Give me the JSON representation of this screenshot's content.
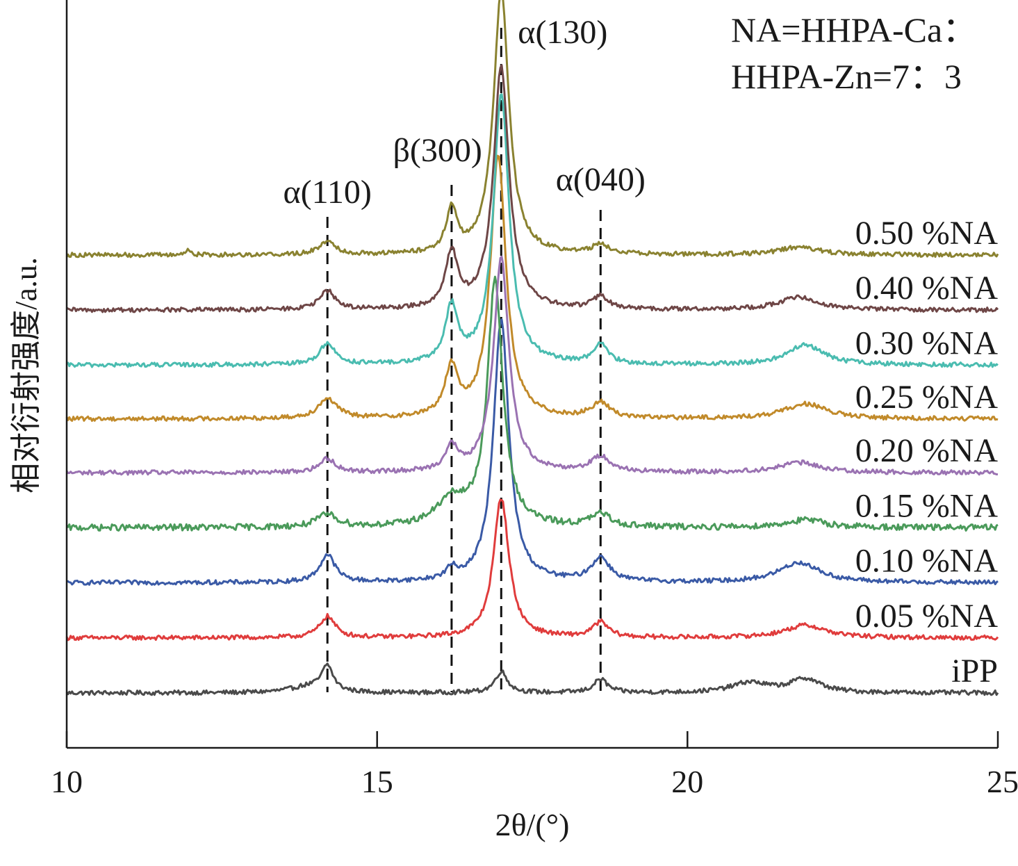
{
  "chart_data": {
    "type": "line",
    "xlabel": "2θ/(°)",
    "ylabel": "相对衍射强度/a.u.",
    "xlim": [
      10,
      25
    ],
    "x_ticks": [
      10,
      15,
      20,
      25
    ],
    "y_ticks_shown": false,
    "grid": false,
    "stacked_offset": true,
    "legend_placement": "inline-labels-right",
    "annotation_box": {
      "line1": "NA=HHPA-Ca：",
      "line2": "HHPA-Zn=7：3"
    },
    "reference_lines": [
      {
        "label": "α(110)",
        "x": 14.2
      },
      {
        "label": "β(300)",
        "x": 16.2
      },
      {
        "label": "α(130)",
        "x": 17.0
      },
      {
        "label": "α(040)",
        "x": 18.6
      }
    ],
    "series": [
      {
        "name": "iPP",
        "color": "#4a4a4a",
        "baseline": 0.0,
        "noise": 0.35,
        "peaks": [
          {
            "x": 13.9,
            "h": 0.5,
            "w": 0.35
          },
          {
            "x": 14.2,
            "h": 2.0,
            "w": 0.11
          },
          {
            "x": 17.0,
            "h": 1.7,
            "w": 0.12
          },
          {
            "x": 18.6,
            "h": 1.1,
            "w": 0.13
          },
          {
            "x": 21.0,
            "h": 0.8,
            "w": 0.35
          },
          {
            "x": 21.9,
            "h": 1.1,
            "w": 0.3
          }
        ]
      },
      {
        "name": "0.05 %NA",
        "color": "#e03c3c",
        "baseline": 4.4,
        "noise": 0.35,
        "peaks": [
          {
            "x": 14.2,
            "h": 1.7,
            "w": 0.15
          },
          {
            "x": 17.0,
            "h": 11.2,
            "w": 0.15
          },
          {
            "x": 18.6,
            "h": 1.2,
            "w": 0.15
          },
          {
            "x": 21.9,
            "h": 1.0,
            "w": 0.4
          }
        ]
      },
      {
        "name": "0.10 %NA",
        "color": "#3a5aa6",
        "baseline": 8.8,
        "noise": 0.35,
        "peaks": [
          {
            "x": 14.2,
            "h": 2.2,
            "w": 0.15
          },
          {
            "x": 16.2,
            "h": 0.8,
            "w": 0.1
          },
          {
            "x": 17.0,
            "h": 21.0,
            "w": 0.15
          },
          {
            "x": 18.6,
            "h": 1.9,
            "w": 0.18
          },
          {
            "x": 21.8,
            "h": 1.6,
            "w": 0.4
          }
        ]
      },
      {
        "name": "0.15 %NA",
        "color": "#4a9a5a",
        "baseline": 13.2,
        "noise": 0.5,
        "peaks": [
          {
            "x": 14.2,
            "h": 1.0,
            "w": 0.2
          },
          {
            "x": 16.2,
            "h": 2.0,
            "w": 0.3
          },
          {
            "x": 16.9,
            "h": 19.5,
            "w": 0.15
          },
          {
            "x": 18.6,
            "h": 1.0,
            "w": 0.2
          },
          {
            "x": 21.9,
            "h": 0.6,
            "w": 0.4
          }
        ]
      },
      {
        "name": "0.20 %NA",
        "color": "#9a72b2",
        "baseline": 17.6,
        "noise": 0.35,
        "peaks": [
          {
            "x": 14.2,
            "h": 1.1,
            "w": 0.15
          },
          {
            "x": 16.2,
            "h": 1.9,
            "w": 0.12
          },
          {
            "x": 17.0,
            "h": 17.1,
            "w": 0.15
          },
          {
            "x": 18.6,
            "h": 1.2,
            "w": 0.2
          },
          {
            "x": 21.8,
            "h": 0.8,
            "w": 0.4
          }
        ]
      },
      {
        "name": "0.25 %NA",
        "color": "#c18a2a",
        "baseline": 21.9,
        "noise": 0.35,
        "peaks": [
          {
            "x": 14.2,
            "h": 1.6,
            "w": 0.18
          },
          {
            "x": 16.2,
            "h": 3.8,
            "w": 0.13
          },
          {
            "x": 16.95,
            "h": 21.1,
            "w": 0.15
          },
          {
            "x": 18.6,
            "h": 1.2,
            "w": 0.18
          },
          {
            "x": 21.9,
            "h": 1.2,
            "w": 0.4
          }
        ]
      },
      {
        "name": "0.30 %NA",
        "color": "#4abcb0",
        "baseline": 26.2,
        "noise": 0.35,
        "peaks": [
          {
            "x": 14.2,
            "h": 1.7,
            "w": 0.15
          },
          {
            "x": 16.2,
            "h": 4.4,
            "w": 0.12
          },
          {
            "x": 17.0,
            "h": 21.7,
            "w": 0.15
          },
          {
            "x": 18.6,
            "h": 1.5,
            "w": 0.15
          },
          {
            "x": 21.9,
            "h": 1.6,
            "w": 0.35
          }
        ]
      },
      {
        "name": "0.40 %NA",
        "color": "#6e4646",
        "baseline": 30.6,
        "noise": 0.35,
        "peaks": [
          {
            "x": 14.2,
            "h": 1.5,
            "w": 0.15
          },
          {
            "x": 16.2,
            "h": 4.4,
            "w": 0.12
          },
          {
            "x": 17.0,
            "h": 19.4,
            "w": 0.15
          },
          {
            "x": 18.6,
            "h": 1.0,
            "w": 0.15
          },
          {
            "x": 21.8,
            "h": 1.0,
            "w": 0.4
          }
        ]
      },
      {
        "name": "0.50 %NA",
        "color": "#8a8230",
        "baseline": 35.0,
        "noise": 0.35,
        "peaks": [
          {
            "x": 11.95,
            "h": 0.5,
            "w": 0.04
          },
          {
            "x": 14.2,
            "h": 1.1,
            "w": 0.15
          },
          {
            "x": 16.2,
            "h": 3.5,
            "w": 0.1
          },
          {
            "x": 17.0,
            "h": 21.0,
            "w": 0.15
          },
          {
            "x": 18.6,
            "h": 0.8,
            "w": 0.15
          },
          {
            "x": 21.8,
            "h": 0.6,
            "w": 0.4
          }
        ]
      }
    ]
  }
}
